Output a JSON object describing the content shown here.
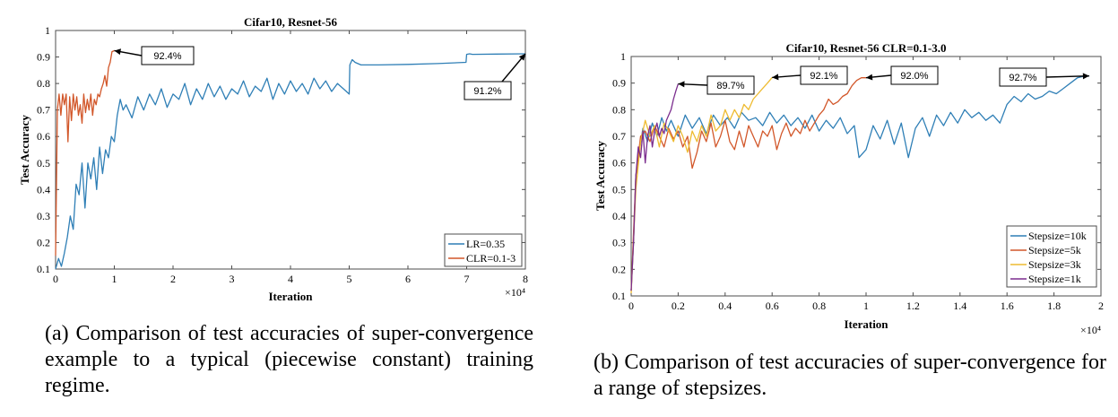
{
  "colors": {
    "blue": "#2f7fb6",
    "orange": "#d2572a",
    "yellow": "#eebb30",
    "purple": "#7b2d8e"
  },
  "captions": {
    "a": "(a) Comparison of test accuracies of super-convergence example to a typical (piecewise constant) training regime.",
    "b": "(b) Comparison of test accuracies of super-convergence for a range of stepsizes."
  },
  "chart_data": [
    {
      "type": "line",
      "title": "Cifar10, Resnet-56",
      "xlabel": "Iteration",
      "ylabel": "Test Accuracy",
      "x_multiplier": "×10⁴",
      "xlim": [
        0,
        8
      ],
      "ylim": [
        0.1,
        1
      ],
      "xticks": [
        "0",
        "1",
        "2",
        "3",
        "4",
        "5",
        "6",
        "7",
        "8"
      ],
      "yticks": [
        "0.1",
        "0.2",
        "0.3",
        "0.4",
        "0.5",
        "0.6",
        "0.7",
        "0.8",
        "0.9",
        "1"
      ],
      "legend_position": "bottom-right",
      "series": [
        {
          "name": "LR=0.35",
          "color": "#2f7fb6",
          "x": [
            0,
            0.05,
            0.1,
            0.15,
            0.2,
            0.25,
            0.3,
            0.35,
            0.4,
            0.45,
            0.5,
            0.55,
            0.6,
            0.65,
            0.7,
            0.75,
            0.8,
            0.85,
            0.9,
            0.95,
            1.0,
            1.05,
            1.1,
            1.15,
            1.2,
            1.3,
            1.4,
            1.5,
            1.6,
            1.7,
            1.8,
            1.9,
            2.0,
            2.1,
            2.2,
            2.3,
            2.4,
            2.5,
            2.6,
            2.7,
            2.8,
            2.9,
            3.0,
            3.1,
            3.2,
            3.3,
            3.4,
            3.5,
            3.6,
            3.7,
            3.8,
            3.9,
            4.0,
            4.1,
            4.2,
            4.3,
            4.4,
            4.5,
            4.6,
            4.7,
            4.8,
            4.9,
            5.0,
            5.01,
            5.05,
            5.1,
            5.2,
            5.5,
            6.0,
            6.5,
            6.99,
            7.0,
            7.05,
            7.1,
            7.5,
            8.0
          ],
          "y": [
            0.1,
            0.14,
            0.11,
            0.16,
            0.22,
            0.3,
            0.25,
            0.42,
            0.38,
            0.5,
            0.33,
            0.5,
            0.44,
            0.52,
            0.4,
            0.56,
            0.46,
            0.55,
            0.52,
            0.6,
            0.58,
            0.68,
            0.74,
            0.7,
            0.72,
            0.67,
            0.75,
            0.7,
            0.76,
            0.72,
            0.78,
            0.71,
            0.76,
            0.74,
            0.8,
            0.72,
            0.78,
            0.74,
            0.8,
            0.75,
            0.79,
            0.74,
            0.78,
            0.76,
            0.81,
            0.75,
            0.79,
            0.77,
            0.82,
            0.74,
            0.8,
            0.76,
            0.81,
            0.77,
            0.8,
            0.76,
            0.82,
            0.78,
            0.81,
            0.77,
            0.8,
            0.78,
            0.76,
            0.87,
            0.89,
            0.88,
            0.87,
            0.87,
            0.872,
            0.875,
            0.88,
            0.91,
            0.912,
            0.91,
            0.911,
            0.912
          ]
        },
        {
          "name": "CLR=0.1-3",
          "color": "#d2572a",
          "x": [
            0,
            0.03,
            0.06,
            0.09,
            0.12,
            0.15,
            0.18,
            0.21,
            0.24,
            0.27,
            0.3,
            0.33,
            0.36,
            0.39,
            0.42,
            0.45,
            0.48,
            0.51,
            0.54,
            0.57,
            0.6,
            0.63,
            0.66,
            0.69,
            0.72,
            0.75,
            0.78,
            0.81,
            0.84,
            0.87,
            0.9,
            0.93,
            0.96,
            1.0
          ],
          "y": [
            0.15,
            0.7,
            0.76,
            0.68,
            0.76,
            0.72,
            0.76,
            0.58,
            0.75,
            0.66,
            0.76,
            0.7,
            0.75,
            0.68,
            0.72,
            0.65,
            0.76,
            0.69,
            0.74,
            0.7,
            0.76,
            0.68,
            0.74,
            0.72,
            0.76,
            0.75,
            0.78,
            0.8,
            0.83,
            0.79,
            0.86,
            0.88,
            0.92,
            0.924
          ]
        }
      ],
      "annotations": [
        {
          "text": "92.4%",
          "x": 1.0,
          "y": 0.924
        },
        {
          "text": "91.2%",
          "x": 8.0,
          "y": 0.912
        }
      ]
    },
    {
      "type": "line",
      "title": "Cifar10, Resnet-56 CLR=0.1-3.0",
      "xlabel": "Iteration",
      "ylabel": "Test Accuracy",
      "x_multiplier": "×10⁴",
      "xlim": [
        0,
        2
      ],
      "ylim": [
        0.1,
        1
      ],
      "xticks": [
        "0",
        "0.2",
        "0.4",
        "0.6",
        "0.8",
        "1",
        "1.2",
        "1.4",
        "1.6",
        "1.8",
        "2"
      ],
      "yticks": [
        "0.1",
        "0.2",
        "0.3",
        "0.4",
        "0.5",
        "0.6",
        "0.7",
        "0.8",
        "0.9",
        "1"
      ],
      "legend_position": "bottom-right",
      "series": [
        {
          "name": "Stepsize=10k",
          "color": "#2f7fb6",
          "x": [
            0,
            0.01,
            0.02,
            0.03,
            0.05,
            0.07,
            0.09,
            0.11,
            0.13,
            0.15,
            0.17,
            0.2,
            0.23,
            0.26,
            0.29,
            0.32,
            0.35,
            0.38,
            0.41,
            0.44,
            0.47,
            0.5,
            0.53,
            0.56,
            0.59,
            0.62,
            0.65,
            0.68,
            0.71,
            0.74,
            0.77,
            0.8,
            0.83,
            0.86,
            0.89,
            0.92,
            0.95,
            0.97,
            1.0,
            1.03,
            1.06,
            1.09,
            1.12,
            1.15,
            1.18,
            1.21,
            1.24,
            1.27,
            1.3,
            1.33,
            1.36,
            1.39,
            1.42,
            1.45,
            1.48,
            1.51,
            1.54,
            1.57,
            1.6,
            1.63,
            1.66,
            1.69,
            1.72,
            1.75,
            1.78,
            1.81,
            1.84,
            1.87,
            1.9,
            1.93,
            1.95
          ],
          "y": [
            0.12,
            0.3,
            0.55,
            0.62,
            0.73,
            0.68,
            0.75,
            0.7,
            0.77,
            0.72,
            0.76,
            0.7,
            0.78,
            0.73,
            0.77,
            0.71,
            0.78,
            0.74,
            0.77,
            0.73,
            0.79,
            0.76,
            0.77,
            0.74,
            0.79,
            0.75,
            0.78,
            0.74,
            0.77,
            0.73,
            0.78,
            0.72,
            0.76,
            0.73,
            0.77,
            0.71,
            0.74,
            0.62,
            0.65,
            0.74,
            0.69,
            0.76,
            0.67,
            0.75,
            0.62,
            0.73,
            0.77,
            0.7,
            0.78,
            0.74,
            0.79,
            0.75,
            0.8,
            0.77,
            0.79,
            0.76,
            0.78,
            0.75,
            0.82,
            0.85,
            0.83,
            0.86,
            0.84,
            0.85,
            0.87,
            0.86,
            0.88,
            0.9,
            0.92,
            0.927,
            0.927
          ]
        },
        {
          "name": "Stepsize=5k",
          "color": "#d2572a",
          "x": [
            0,
            0.02,
            0.04,
            0.06,
            0.08,
            0.1,
            0.12,
            0.14,
            0.16,
            0.18,
            0.2,
            0.22,
            0.24,
            0.26,
            0.28,
            0.3,
            0.32,
            0.34,
            0.36,
            0.38,
            0.4,
            0.42,
            0.44,
            0.46,
            0.48,
            0.5,
            0.52,
            0.54,
            0.56,
            0.58,
            0.6,
            0.62,
            0.64,
            0.66,
            0.68,
            0.7,
            0.72,
            0.74,
            0.76,
            0.78,
            0.8,
            0.82,
            0.84,
            0.86,
            0.88,
            0.9,
            0.92,
            0.94,
            0.96,
            0.98,
            1.0
          ],
          "y": [
            0.12,
            0.55,
            0.7,
            0.72,
            0.68,
            0.74,
            0.7,
            0.66,
            0.73,
            0.69,
            0.72,
            0.66,
            0.7,
            0.58,
            0.64,
            0.72,
            0.68,
            0.75,
            0.66,
            0.7,
            0.76,
            0.68,
            0.65,
            0.72,
            0.66,
            0.74,
            0.7,
            0.66,
            0.72,
            0.7,
            0.74,
            0.65,
            0.71,
            0.75,
            0.7,
            0.73,
            0.71,
            0.76,
            0.72,
            0.75,
            0.78,
            0.8,
            0.84,
            0.82,
            0.83,
            0.85,
            0.86,
            0.89,
            0.91,
            0.92,
            0.92
          ]
        },
        {
          "name": "Stepsize=3k",
          "color": "#eebb30",
          "x": [
            0,
            0.02,
            0.04,
            0.06,
            0.08,
            0.1,
            0.12,
            0.14,
            0.16,
            0.18,
            0.2,
            0.22,
            0.24,
            0.26,
            0.28,
            0.3,
            0.32,
            0.34,
            0.36,
            0.38,
            0.4,
            0.42,
            0.44,
            0.46,
            0.48,
            0.5,
            0.52,
            0.54,
            0.56,
            0.58,
            0.6
          ],
          "y": [
            0.11,
            0.5,
            0.68,
            0.76,
            0.7,
            0.74,
            0.66,
            0.75,
            0.72,
            0.68,
            0.74,
            0.7,
            0.64,
            0.72,
            0.68,
            0.74,
            0.7,
            0.78,
            0.72,
            0.74,
            0.8,
            0.76,
            0.8,
            0.77,
            0.82,
            0.8,
            0.84,
            0.86,
            0.88,
            0.9,
            0.921
          ]
        },
        {
          "name": "Stepsize=1k",
          "color": "#7b2d8e",
          "x": [
            0,
            0.01,
            0.02,
            0.03,
            0.04,
            0.05,
            0.06,
            0.07,
            0.08,
            0.09,
            0.1,
            0.11,
            0.12,
            0.13,
            0.14,
            0.15,
            0.16,
            0.17,
            0.18,
            0.19,
            0.2
          ],
          "y": [
            0.12,
            0.3,
            0.55,
            0.66,
            0.62,
            0.72,
            0.6,
            0.7,
            0.74,
            0.66,
            0.72,
            0.75,
            0.7,
            0.73,
            0.71,
            0.76,
            0.78,
            0.8,
            0.84,
            0.87,
            0.897
          ]
        }
      ],
      "annotations": [
        {
          "text": "89.7%",
          "x": 0.2,
          "y": 0.897
        },
        {
          "text": "92.1%",
          "x": 0.6,
          "y": 0.921
        },
        {
          "text": "92.0%",
          "x": 1.0,
          "y": 0.92
        },
        {
          "text": "92.7%",
          "x": 1.95,
          "y": 0.927
        }
      ]
    }
  ]
}
